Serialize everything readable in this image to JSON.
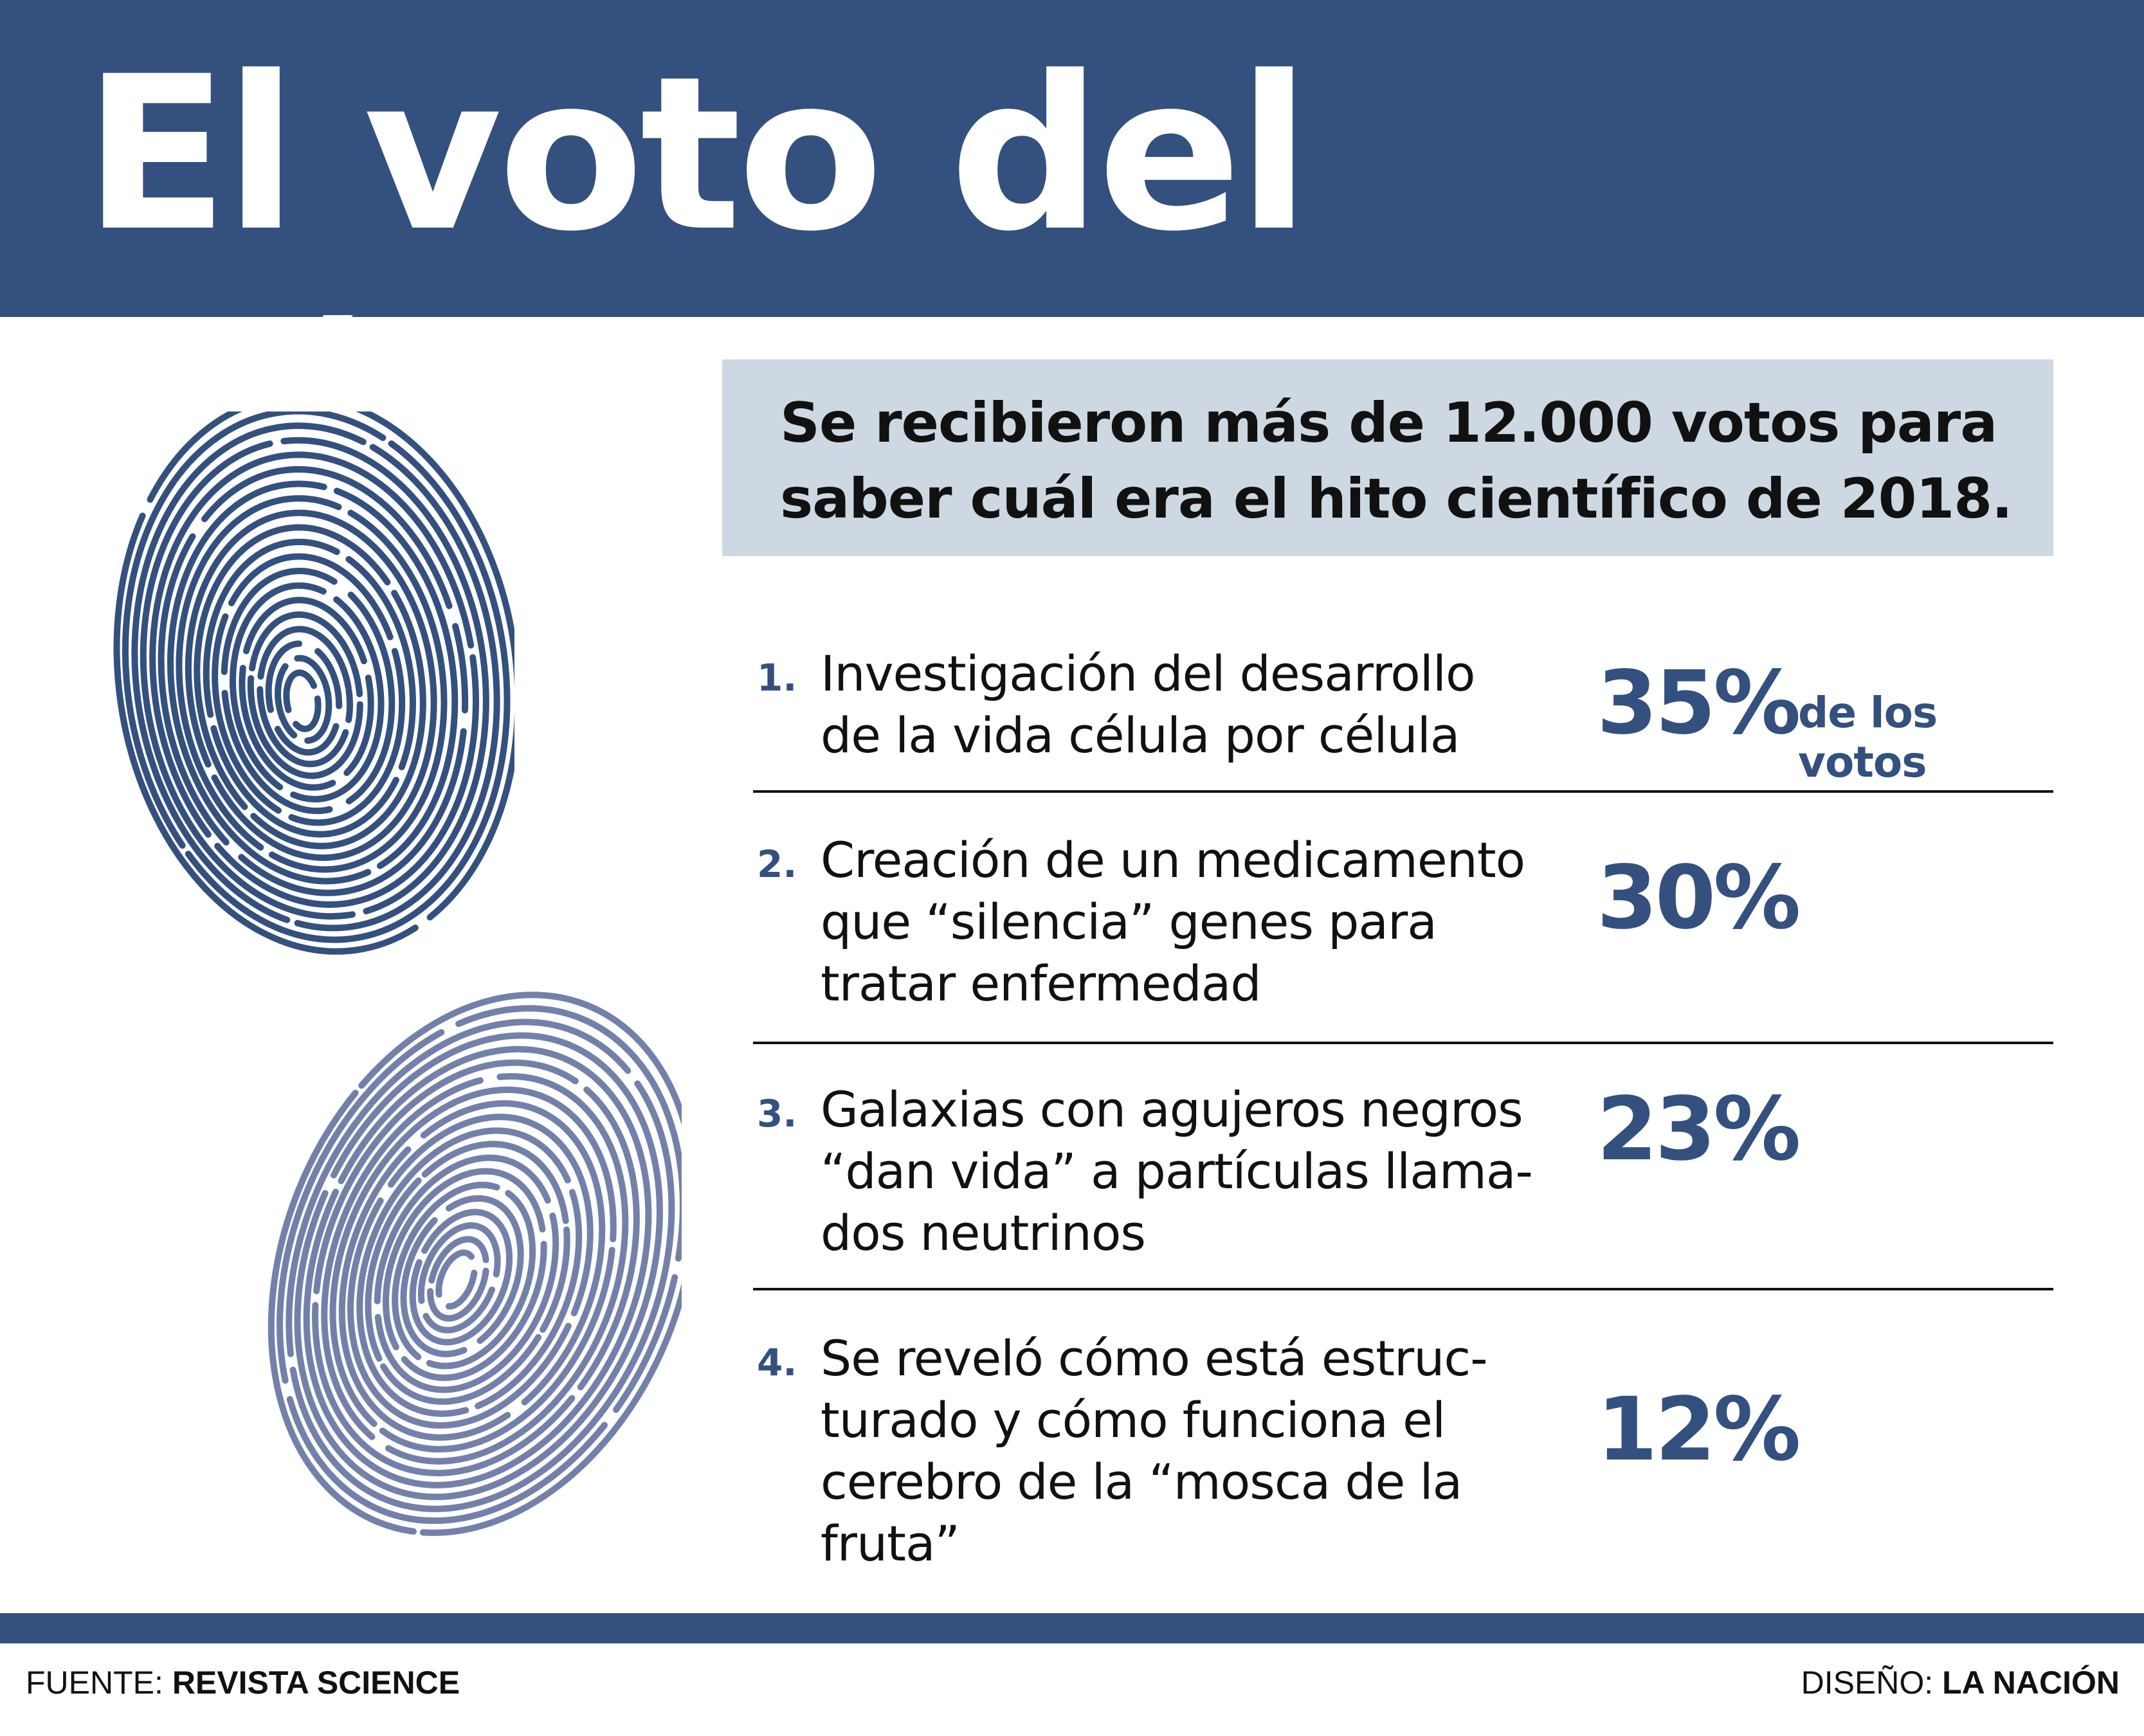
{
  "header": {
    "title": "El voto del público"
  },
  "intro": {
    "line1": "Se recibieron más de 12.000 votos para",
    "line2": "saber cuál era el hito científico de 2018."
  },
  "items": [
    {
      "number": "1.",
      "lines": [
        "Investigación del desarrollo",
        "de la vida célula por célula"
      ],
      "percent": "35%",
      "percent_note": "de los votos"
    },
    {
      "number": "2.",
      "lines": [
        "Creación de un medicamento",
        "que “silencia” genes para",
        "tratar enfermedad"
      ],
      "percent": "30%"
    },
    {
      "number": "3.",
      "lines": [
        "Galaxias con agujeros negros",
        "“dan vida” a partículas llama-",
        "dos neutrinos"
      ],
      "percent": "23%"
    },
    {
      "number": "4.",
      "lines": [
        "Se reveló cómo está estruc-",
        "turado y cómo funciona el",
        "cerebro de la  “mosca de la",
        "fruta”"
      ],
      "percent": "12%"
    }
  ],
  "footer": {
    "source_label": "FUENTE:",
    "source": "REVISTA SCIENCE",
    "design_label": "DISEÑO:",
    "design": "LA NACIÓN"
  },
  "colors": {
    "brand": "#33507f",
    "fingerprint_dark": "#33507f",
    "fingerprint_light": "#7380aa",
    "intro_bg": "#cdd8e2"
  }
}
